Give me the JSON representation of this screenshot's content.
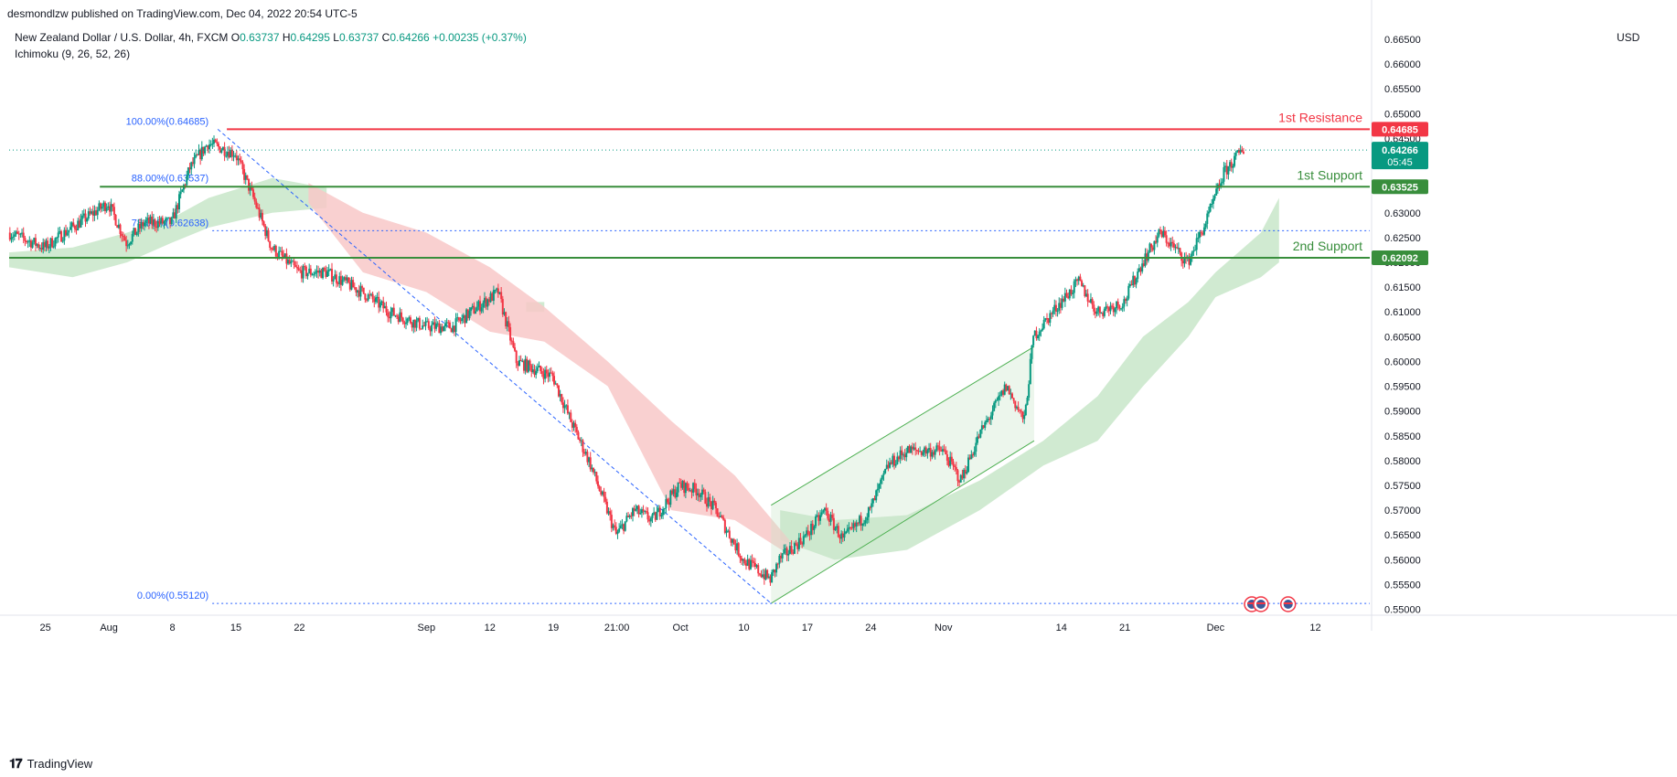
{
  "header": {
    "published": "desmondlzw published on TradingView.com, Dec 04, 2022 20:54 UTC-5"
  },
  "legend": {
    "symbol": "New Zealand Dollar / U.S. Dollar, 4h, FXCM",
    "open_label": "O",
    "open": "0.63737",
    "high_label": "H",
    "high": "0.64295",
    "low_label": "L",
    "low": "0.63737",
    "close_label": "C",
    "close": "0.64266",
    "change": "+0.00235 (+0.37%)",
    "indicator": "Ichimoku (9, 26, 52, 26)"
  },
  "axis": {
    "currency": "USD"
  },
  "footer": {
    "brand": "TradingView",
    "logo": "tradingview-logo-icon"
  },
  "colors": {
    "up": "#089981",
    "down": "#f23645",
    "resistance": "#f23645",
    "support": "#388e3c",
    "fib": "#2962ff",
    "cloud_up": "#c8e6c9",
    "cloud_down": "#f8c8c8",
    "last": "#089981"
  },
  "chart_data": {
    "type": "candlestick",
    "timeframe": "4h",
    "y_ticks": [
      0.55,
      0.555,
      0.56,
      0.565,
      0.57,
      0.575,
      0.58,
      0.585,
      0.59,
      0.595,
      0.6,
      0.605,
      0.61,
      0.615,
      0.62,
      0.625,
      0.63,
      0.635,
      0.64,
      0.645,
      0.65,
      0.655,
      0.66,
      0.665
    ],
    "y_tick_labels": [
      "0.55000",
      "0.55500",
      "0.56000",
      "0.56500",
      "0.57000",
      "0.57500",
      "0.58000",
      "0.58500",
      "0.59000",
      "0.59500",
      "0.60000",
      "0.60500",
      "0.61000",
      "0.61500",
      "0.62000",
      "0.62500",
      "0.63000",
      "0.63500",
      "0.64000",
      "0.64500",
      "0.65000",
      "0.65500",
      "0.66000",
      "0.66500"
    ],
    "ylim": [
      0.549,
      0.6685
    ],
    "x_labels": [
      "25",
      "Aug",
      "8",
      "15",
      "22",
      "Sep",
      "12",
      "19",
      "21:00",
      "Oct",
      "10",
      "17",
      "24",
      "Nov",
      "14",
      "21",
      "Dec",
      "12"
    ],
    "x_label_dates": [
      "2022-07-25",
      "2022-08-01",
      "2022-08-08",
      "2022-08-15",
      "2022-08-22",
      "2022-09-05",
      "2022-09-12",
      "2022-09-19",
      "2022-09-26",
      "2022-10-03",
      "2022-10-10",
      "2022-10-17",
      "2022-10-24",
      "2022-11-01",
      "2022-11-14",
      "2022-11-21",
      "2022-12-01",
      "2022-12-12"
    ],
    "x_range": [
      "2022-07-21",
      "2022-12-18"
    ],
    "price_path": [
      [
        "2022-07-21",
        0.626
      ],
      [
        "2022-07-25",
        0.623
      ],
      [
        "2022-07-28",
        0.627
      ],
      [
        "2022-08-01",
        0.632
      ],
      [
        "2022-08-03",
        0.624
      ],
      [
        "2022-08-05",
        0.628
      ],
      [
        "2022-08-08",
        0.628
      ],
      [
        "2022-08-10",
        0.639
      ],
      [
        "2022-08-12",
        0.644
      ],
      [
        "2022-08-15",
        0.642
      ],
      [
        "2022-08-17",
        0.633
      ],
      [
        "2022-08-19",
        0.623
      ],
      [
        "2022-08-22",
        0.618
      ],
      [
        "2022-08-25",
        0.618
      ],
      [
        "2022-08-29",
        0.614
      ],
      [
        "2022-09-01",
        0.61
      ],
      [
        "2022-09-05",
        0.607
      ],
      [
        "2022-09-08",
        0.607
      ],
      [
        "2022-09-10",
        0.61
      ],
      [
        "2022-09-13",
        0.614
      ],
      [
        "2022-09-15",
        0.6
      ],
      [
        "2022-09-19",
        0.597
      ],
      [
        "2022-09-21",
        0.588
      ],
      [
        "2022-09-23",
        0.58
      ],
      [
        "2022-09-26",
        0.565
      ],
      [
        "2022-09-28",
        0.57
      ],
      [
        "2022-09-30",
        0.568
      ],
      [
        "2022-10-03",
        0.575
      ],
      [
        "2022-10-05",
        0.574
      ],
      [
        "2022-10-07",
        0.57
      ],
      [
        "2022-10-10",
        0.56
      ],
      [
        "2022-10-13",
        0.556
      ],
      [
        "2022-10-14",
        0.56
      ],
      [
        "2022-10-17",
        0.565
      ],
      [
        "2022-10-19",
        0.57
      ],
      [
        "2022-10-21",
        0.564
      ],
      [
        "2022-10-24",
        0.57
      ],
      [
        "2022-10-26",
        0.579
      ],
      [
        "2022-10-28",
        0.582
      ],
      [
        "2022-11-01",
        0.582
      ],
      [
        "2022-11-03",
        0.576
      ],
      [
        "2022-11-05",
        0.585
      ],
      [
        "2022-11-08",
        0.595
      ],
      [
        "2022-11-10",
        0.588
      ],
      [
        "2022-11-11",
        0.605
      ],
      [
        "2022-11-14",
        0.612
      ],
      [
        "2022-11-16",
        0.616
      ],
      [
        "2022-11-18",
        0.61
      ],
      [
        "2022-11-21",
        0.612
      ],
      [
        "2022-11-23",
        0.62
      ],
      [
        "2022-11-25",
        0.626
      ],
      [
        "2022-11-28",
        0.62
      ],
      [
        "2022-11-30",
        0.628
      ],
      [
        "2022-12-01",
        0.633
      ],
      [
        "2022-12-02",
        0.638
      ],
      [
        "2022-12-04",
        0.6427
      ]
    ],
    "ichimoku_cloud": {
      "bullish_segments": [
        [
          [
            "2022-07-21",
            0.622,
            0.619
          ],
          [
            "2022-07-28",
            0.623,
            0.617
          ],
          [
            "2022-08-03",
            0.626,
            0.62
          ],
          [
            "2022-08-08",
            0.629,
            0.624
          ],
          [
            "2022-08-12",
            0.633,
            0.627
          ],
          [
            "2022-08-19",
            0.637,
            0.63
          ],
          [
            "2022-08-25",
            0.635,
            0.631
          ]
        ],
        [
          [
            "2022-09-16",
            0.612,
            0.61
          ],
          [
            "2022-09-18",
            0.612,
            0.61
          ]
        ],
        [
          [
            "2022-10-14",
            0.57,
            0.564
          ],
          [
            "2022-10-20",
            0.568,
            0.56
          ],
          [
            "2022-10-28",
            0.569,
            0.562
          ],
          [
            "2022-11-05",
            0.576,
            0.57
          ],
          [
            "2022-11-12",
            0.584,
            0.579
          ],
          [
            "2022-11-18",
            0.593,
            0.584
          ],
          [
            "2022-11-23",
            0.605,
            0.595
          ],
          [
            "2022-11-28",
            0.612,
            0.605
          ],
          [
            "2022-12-01",
            0.618,
            0.613
          ],
          [
            "2022-12-06",
            0.626,
            0.617
          ],
          [
            "2022-12-08",
            0.633,
            0.62
          ]
        ]
      ],
      "bearish_segments": [
        [
          [
            "2022-08-23",
            0.636,
            0.632
          ],
          [
            "2022-08-29",
            0.63,
            0.618
          ],
          [
            "2022-09-05",
            0.626,
            0.614
          ],
          [
            "2022-09-12",
            0.619,
            0.606
          ],
          [
            "2022-09-18",
            0.611,
            0.604
          ],
          [
            "2022-09-25",
            0.6,
            0.595
          ],
          [
            "2022-10-02",
            0.588,
            0.57
          ],
          [
            "2022-10-09",
            0.577,
            0.568
          ],
          [
            "2022-10-15",
            0.564,
            0.561
          ]
        ]
      ]
    },
    "fib_retracement": {
      "start": [
        "2022-08-13",
        0.64685
      ],
      "end": [
        "2022-10-13",
        0.5512
      ],
      "levels": [
        {
          "label": "100.00%(0.64685)",
          "value": 0.64685
        },
        {
          "label": "88.00%(0.63537)",
          "value": 0.63537
        },
        {
          "label": "78.60%(0.62638)",
          "value": 0.62638
        },
        {
          "label": "0.00%(0.55120)",
          "value": 0.5512
        }
      ]
    },
    "horizontal_levels": [
      {
        "name": "1st Resistance",
        "value": 0.64685,
        "label": "0.64685",
        "role": "resistance",
        "from": "2022-08-14"
      },
      {
        "name": "1st Support",
        "value": 0.63525,
        "label": "0.63525",
        "role": "support",
        "from": "2022-07-31"
      },
      {
        "name": "2nd Support",
        "value": 0.62092,
        "label": "0.62092",
        "role": "support",
        "from": "2022-07-21"
      }
    ],
    "channel": {
      "lower": [
        [
          "2022-10-13",
          0.5512
        ],
        [
          "2022-11-11",
          0.584
        ]
      ],
      "upper": [
        [
          "2022-10-13",
          0.571
        ],
        [
          "2022-11-11",
          0.603
        ]
      ]
    },
    "last_price": {
      "value": 0.64266,
      "label": "0.64266",
      "countdown": "05:45"
    },
    "events": [
      {
        "date": "2022-12-05",
        "icon": "us-flag-icon"
      },
      {
        "date": "2022-12-06",
        "icon": "us-flag-icon"
      },
      {
        "date": "2022-12-09",
        "icon": "us-flag-icon"
      }
    ]
  }
}
